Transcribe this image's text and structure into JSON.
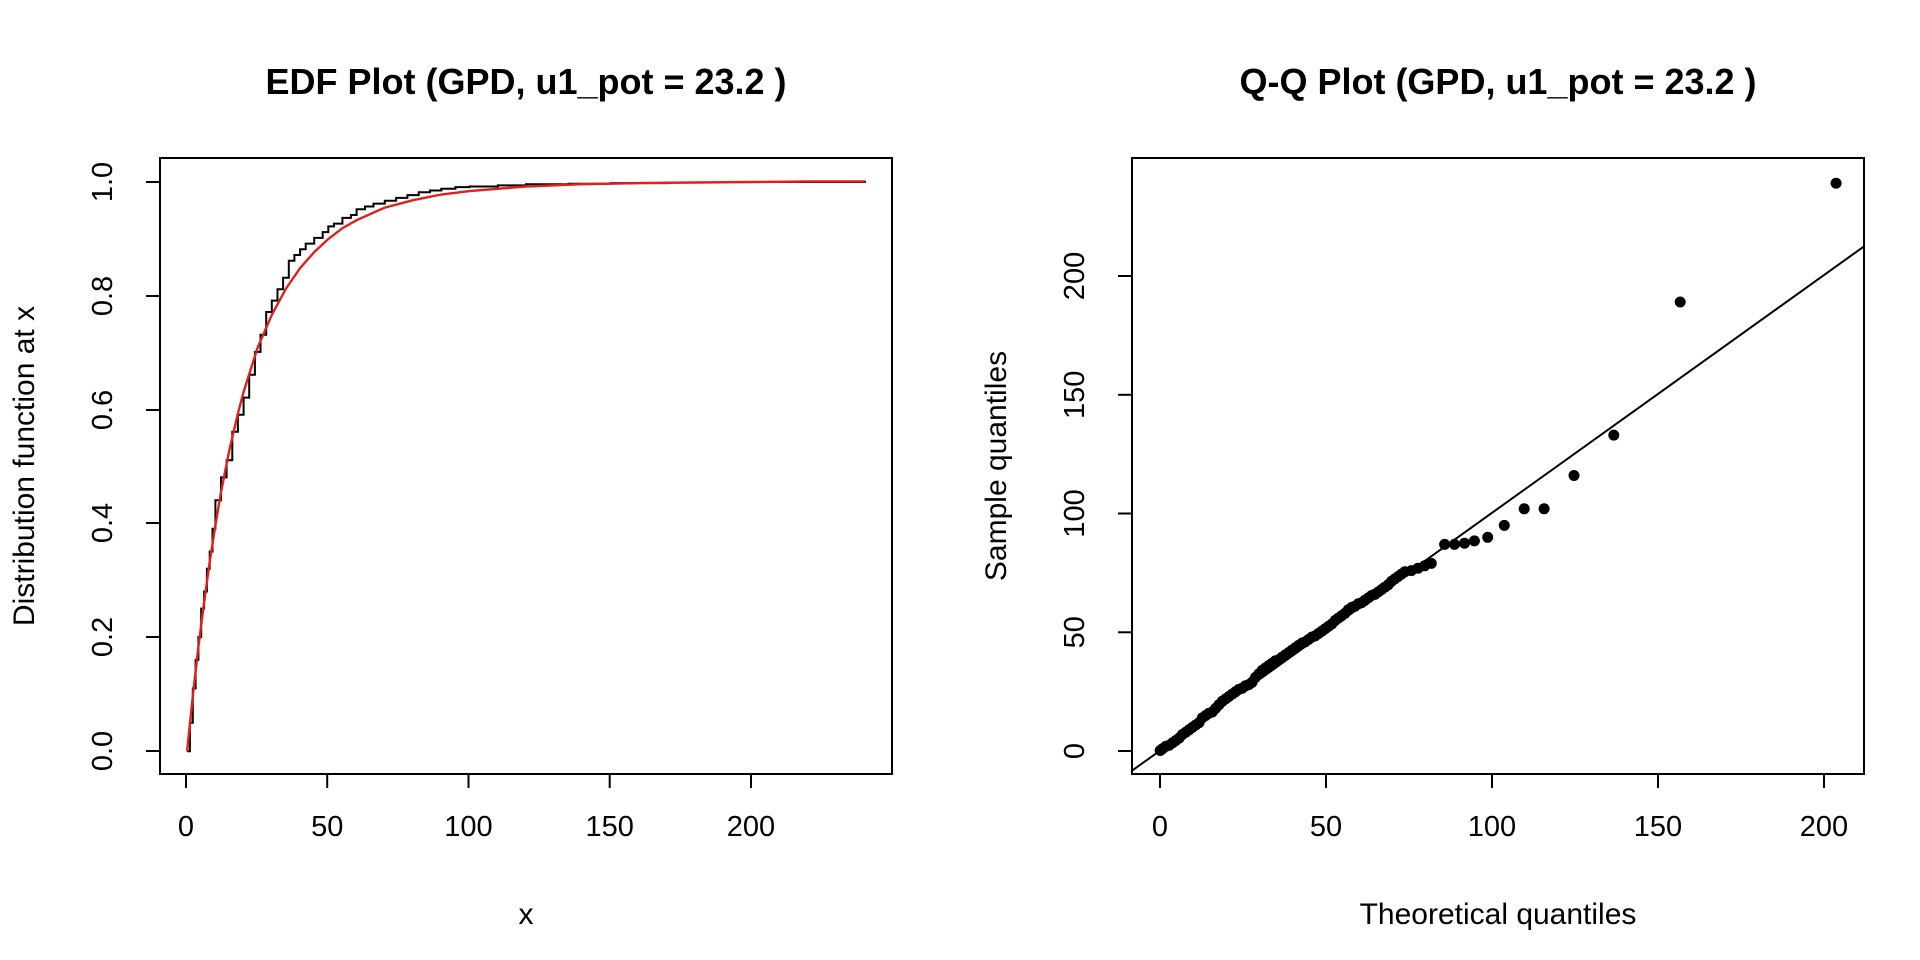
{
  "colors": {
    "edf": "#000000",
    "fit": "#e0201b",
    "points": "#000000",
    "line": "#000000"
  },
  "chart_data": [
    {
      "type": "line",
      "title": "EDF Plot (GPD, u1_pot = 23.2 )",
      "xlabel": "x",
      "ylabel": "Distribution function at x",
      "xlim": [
        -9.6,
        249.6
      ],
      "ylim": [
        -0.04,
        1.04
      ],
      "xticks": [
        "0",
        "50",
        "100",
        "150",
        "200"
      ],
      "yticks": [
        "0.0",
        "0.2",
        "0.4",
        "0.6",
        "0.8",
        "1.0"
      ],
      "grid": false,
      "series": [
        {
          "kind": "edf-step",
          "x": [
            0,
            1,
            2,
            3,
            4,
            5,
            6,
            7,
            8,
            9,
            10,
            12,
            14,
            16,
            18,
            20,
            22,
            24,
            26,
            28,
            30,
            32,
            34,
            36,
            38,
            40,
            42,
            45,
            48,
            50,
            52,
            55,
            58,
            60,
            63,
            66,
            70,
            74,
            78,
            82,
            86,
            90,
            95,
            100,
            110,
            120,
            135,
            150,
            170,
            190,
            240
          ],
          "y": [
            0.0,
            0.05,
            0.11,
            0.16,
            0.2,
            0.25,
            0.28,
            0.32,
            0.35,
            0.39,
            0.44,
            0.48,
            0.51,
            0.56,
            0.59,
            0.62,
            0.66,
            0.7,
            0.73,
            0.77,
            0.79,
            0.81,
            0.83,
            0.86,
            0.87,
            0.88,
            0.89,
            0.9,
            0.91,
            0.92,
            0.925,
            0.935,
            0.94,
            0.95,
            0.955,
            0.96,
            0.965,
            0.97,
            0.975,
            0.98,
            0.983,
            0.986,
            0.989,
            0.99,
            0.992,
            0.994,
            0.995,
            0.996,
            0.997,
            0.998,
            1.0
          ]
        },
        {
          "kind": "gpd-cdf",
          "x": [
            0,
            2,
            4,
            6,
            8,
            10,
            12,
            15,
            18,
            20,
            25,
            30,
            35,
            40,
            45,
            50,
            55,
            60,
            70,
            80,
            90,
            100,
            120,
            140,
            160,
            180,
            200,
            220,
            240
          ],
          "y": [
            0.0,
            0.096,
            0.183,
            0.261,
            0.332,
            0.396,
            0.454,
            0.529,
            0.592,
            0.63,
            0.708,
            0.765,
            0.811,
            0.847,
            0.875,
            0.898,
            0.917,
            0.931,
            0.953,
            0.966,
            0.976,
            0.982,
            0.99,
            0.994,
            0.996,
            0.997,
            0.998,
            0.999,
            0.999
          ]
        }
      ]
    },
    {
      "type": "scatter",
      "title": "Q-Q Plot (GPD, u1_pot = 23.2 )",
      "xlabel": "Theoretical quantiles",
      "ylabel": "Sample quantiles",
      "xlim": [
        -8.2,
        212.4
      ],
      "ylim": [
        -9.6,
        249.6
      ],
      "xticks": [
        "0",
        "50",
        "100",
        "150",
        "200"
      ],
      "yticks": [
        "0",
        "50",
        "100",
        "150",
        "200"
      ],
      "grid": false,
      "reference_line": {
        "intercept": 0,
        "slope": 1
      },
      "points": {
        "x": [
          0.3,
          1,
          2,
          3,
          4,
          5,
          6,
          7,
          8,
          9,
          10,
          11,
          12,
          13,
          14,
          15,
          16,
          17,
          18,
          19,
          20,
          21,
          22,
          23,
          24,
          25,
          26,
          27,
          28,
          29,
          30,
          31,
          32,
          33,
          34,
          35,
          36,
          37,
          38,
          39,
          40,
          41,
          42,
          43,
          44,
          45,
          46,
          47,
          48,
          49,
          50,
          51,
          52,
          53,
          54,
          55,
          56,
          57,
          58,
          59,
          60,
          61,
          62,
          63,
          64,
          65,
          66,
          67,
          68,
          69,
          70,
          71,
          72,
          73,
          74,
          76,
          78,
          80,
          82,
          86,
          89,
          92,
          95,
          99,
          104,
          110,
          116,
          125,
          137,
          157,
          204
        ],
        "y": [
          0.3,
          1,
          2,
          2.5,
          3.5,
          4.5,
          5.5,
          7,
          8,
          9,
          10,
          11,
          12,
          14,
          15,
          16,
          16.5,
          18,
          19.5,
          21,
          22,
          23,
          24,
          25,
          26,
          26.5,
          27.5,
          28,
          29,
          31,
          32.5,
          34,
          35,
          36,
          37,
          38,
          38.5,
          39.5,
          40.5,
          41.5,
          42.5,
          43.5,
          44.5,
          45.5,
          46,
          47,
          48,
          48.5,
          49.5,
          50.5,
          51.5,
          52.5,
          53.5,
          55,
          56,
          57,
          58,
          59.5,
          60.5,
          61,
          62,
          62.5,
          63.5,
          64.5,
          65.5,
          66,
          67,
          68,
          69,
          70,
          71.5,
          72.5,
          73.5,
          74.5,
          75.5,
          76,
          77,
          78,
          79,
          87,
          87,
          87.5,
          88.5,
          90,
          95,
          102,
          102,
          116,
          133,
          189,
          239
        ]
      }
    }
  ]
}
